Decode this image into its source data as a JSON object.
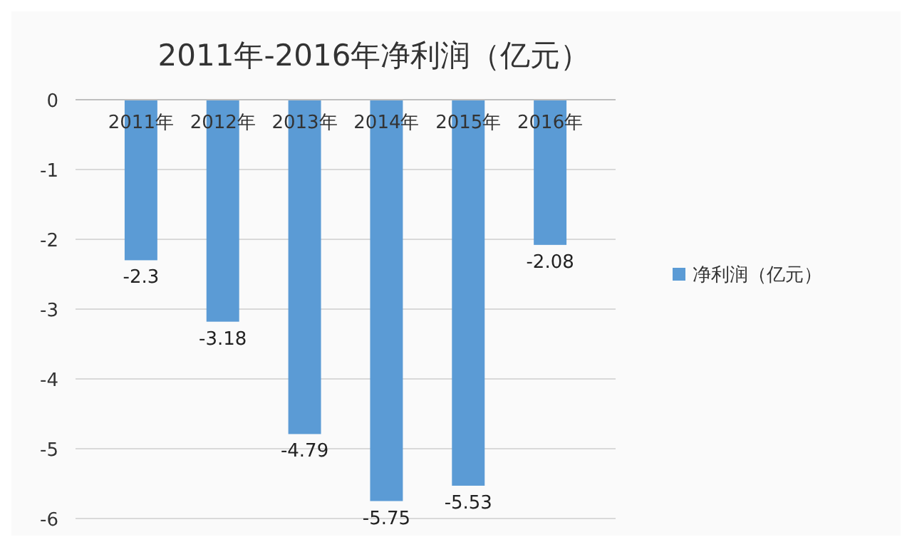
{
  "chart_data": {
    "type": "bar",
    "title": "2011年-2016年净利润（亿元）",
    "categories": [
      "2011年",
      "2012年",
      "2013年",
      "2014年",
      "2015年",
      "2016年"
    ],
    "series": [
      {
        "name": "净利润（亿元）",
        "color": "#5b9bd5",
        "values": [
          -2.3,
          -3.18,
          -4.79,
          -5.75,
          -5.53,
          -2.08
        ]
      }
    ],
    "ylim": [
      -6,
      0
    ],
    "yticks": [
      0,
      -1,
      -2,
      -3,
      -4,
      -5,
      -6
    ],
    "grid": "y",
    "legend": "right",
    "data_labels": true
  }
}
